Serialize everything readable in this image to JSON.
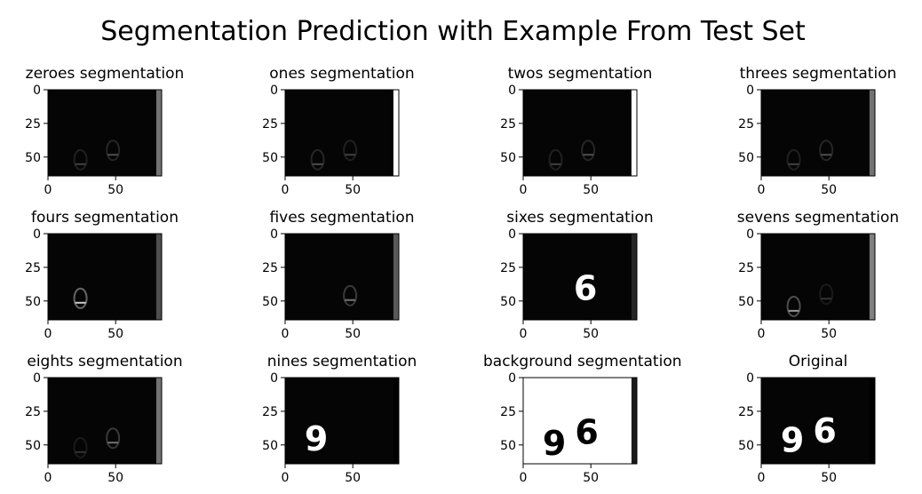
{
  "figure_title": "Segmentation Prediction with Example From Test Set",
  "chart_data": [
    {
      "type": "heatmap",
      "title": "zeroes segmentation",
      "x_ticks": [
        "0",
        "50"
      ],
      "y_ticks": [
        "0",
        "25",
        "50"
      ],
      "xlim": [
        0,
        84
      ],
      "ylim": [
        64,
        0
      ],
      "colormap": "gray",
      "content": "faint",
      "side_band_level": 0.45,
      "marks": [
        {
          "x": 24,
          "y": 52,
          "intensity": 0.25
        },
        {
          "x": 48,
          "y": 45,
          "intensity": 0.3
        }
      ]
    },
    {
      "type": "heatmap",
      "title": "ones segmentation",
      "x_ticks": [
        "0",
        "50"
      ],
      "y_ticks": [
        "0",
        "25",
        "50"
      ],
      "xlim": [
        0,
        84
      ],
      "ylim": [
        64,
        0
      ],
      "colormap": "gray",
      "content": "faint",
      "side_band_level": 1.0,
      "marks": [
        {
          "x": 24,
          "y": 52,
          "intensity": 0.3
        },
        {
          "x": 48,
          "y": 45,
          "intensity": 0.25
        }
      ]
    },
    {
      "type": "heatmap",
      "title": "twos segmentation",
      "x_ticks": [
        "0",
        "50"
      ],
      "y_ticks": [
        "0",
        "25",
        "50"
      ],
      "xlim": [
        0,
        84
      ],
      "ylim": [
        64,
        0
      ],
      "colormap": "gray",
      "content": "faint",
      "side_band_level": 1.0,
      "marks": [
        {
          "x": 24,
          "y": 52,
          "intensity": 0.25
        },
        {
          "x": 48,
          "y": 45,
          "intensity": 0.3
        }
      ]
    },
    {
      "type": "heatmap",
      "title": "threes segmentation",
      "x_ticks": [
        "0",
        "50"
      ],
      "y_ticks": [
        "0",
        "25",
        "50"
      ],
      "xlim": [
        0,
        84
      ],
      "ylim": [
        64,
        0
      ],
      "colormap": "gray",
      "content": "faint",
      "side_band_level": 0.45,
      "marks": [
        {
          "x": 24,
          "y": 52,
          "intensity": 0.25
        },
        {
          "x": 48,
          "y": 45,
          "intensity": 0.3
        }
      ]
    },
    {
      "type": "heatmap",
      "title": "fours segmentation",
      "x_ticks": [
        "0",
        "50"
      ],
      "y_ticks": [
        "0",
        "25",
        "50"
      ],
      "xlim": [
        0,
        84
      ],
      "ylim": [
        64,
        0
      ],
      "colormap": "gray",
      "content": "faint",
      "side_band_level": 0.3,
      "marks": [
        {
          "x": 24,
          "y": 48,
          "intensity": 0.8
        }
      ]
    },
    {
      "type": "heatmap",
      "title": "fives segmentation",
      "x_ticks": [
        "0",
        "50"
      ],
      "y_ticks": [
        "0",
        "25",
        "50"
      ],
      "xlim": [
        0,
        84
      ],
      "ylim": [
        64,
        0
      ],
      "colormap": "gray",
      "content": "faint",
      "side_band_level": 0.35,
      "marks": [
        {
          "x": 48,
          "y": 46,
          "intensity": 0.45
        }
      ]
    },
    {
      "type": "heatmap",
      "title": "sixes segmentation",
      "x_ticks": [
        "0",
        "50"
      ],
      "y_ticks": [
        "0",
        "25",
        "50"
      ],
      "xlim": [
        0,
        84
      ],
      "ylim": [
        64,
        0
      ],
      "colormap": "gray",
      "content": "digit",
      "digit": "6",
      "side_band_level": 0.15,
      "marks": [
        {
          "x": 46,
          "y": 40,
          "intensity": 1.0
        }
      ]
    },
    {
      "type": "heatmap",
      "title": "sevens segmentation",
      "x_ticks": [
        "0",
        "50"
      ],
      "y_ticks": [
        "0",
        "25",
        "50"
      ],
      "xlim": [
        0,
        84
      ],
      "ylim": [
        64,
        0
      ],
      "colormap": "gray",
      "content": "faint",
      "side_band_level": 0.5,
      "marks": [
        {
          "x": 24,
          "y": 54,
          "intensity": 0.6
        },
        {
          "x": 48,
          "y": 45,
          "intensity": 0.2
        }
      ]
    },
    {
      "type": "heatmap",
      "title": "eights segmentation",
      "x_ticks": [
        "0",
        "50"
      ],
      "y_ticks": [
        "0",
        "25",
        "50"
      ],
      "xlim": [
        0,
        84
      ],
      "ylim": [
        64,
        0
      ],
      "colormap": "gray",
      "content": "faint",
      "side_band_level": 0.45,
      "marks": [
        {
          "x": 24,
          "y": 52,
          "intensity": 0.2
        },
        {
          "x": 48,
          "y": 45,
          "intensity": 0.45
        }
      ]
    },
    {
      "type": "heatmap",
      "title": "nines segmentation",
      "x_ticks": [
        "0",
        "50"
      ],
      "y_ticks": [
        "0",
        "25",
        "50"
      ],
      "xlim": [
        0,
        84
      ],
      "ylim": [
        64,
        0
      ],
      "colormap": "gray",
      "content": "digit",
      "digit": "9",
      "side_band_level": 0.0,
      "marks": [
        {
          "x": 23,
          "y": 45,
          "intensity": 1.0
        }
      ]
    },
    {
      "type": "heatmap",
      "title": "background segmentation",
      "x_ticks": [
        "0",
        "50"
      ],
      "y_ticks": [
        "0",
        "25",
        "50"
      ],
      "xlim": [
        0,
        84
      ],
      "ylim": [
        64,
        0
      ],
      "colormap": "gray",
      "content": "inverted",
      "side_band_level": 0.1,
      "marks": [
        {
          "x": 23,
          "y": 48,
          "intensity": 0.0,
          "digit": "9"
        },
        {
          "x": 47,
          "y": 40,
          "intensity": 0.0,
          "digit": "6"
        }
      ]
    },
    {
      "type": "heatmap",
      "title": "Original",
      "x_ticks": [
        "0",
        "50"
      ],
      "y_ticks": [
        "0",
        "25",
        "50"
      ],
      "xlim": [
        0,
        84
      ],
      "ylim": [
        64,
        0
      ],
      "colormap": "gray",
      "content": "digits",
      "side_band_level": 0.0,
      "marks": [
        {
          "x": 23,
          "y": 46,
          "intensity": 1.0,
          "digit": "9"
        },
        {
          "x": 47,
          "y": 39,
          "intensity": 1.0,
          "digit": "6"
        }
      ]
    }
  ]
}
